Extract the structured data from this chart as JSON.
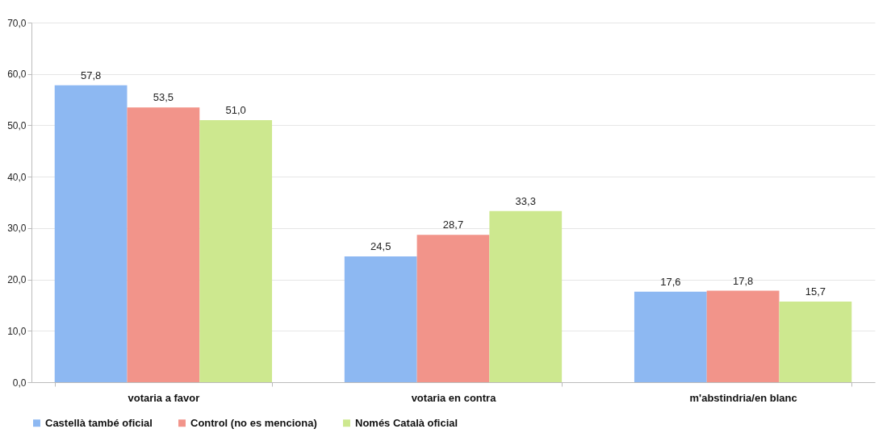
{
  "chart_data": {
    "type": "bar",
    "categories": [
      "votaria a favor",
      "votaria en contra",
      "m'abstindria/en blanc"
    ],
    "series": [
      {
        "name": "Castellà també oficial",
        "color": "#8db8f2",
        "values": [
          57.8,
          24.5,
          17.6
        ],
        "value_labels": [
          "57,8",
          "24,5",
          "17,6"
        ]
      },
      {
        "name": "Control (no es menciona)",
        "color": "#f2948a",
        "values": [
          53.5,
          28.7,
          17.8
        ],
        "value_labels": [
          "53,5",
          "28,7",
          "17,8"
        ]
      },
      {
        "name": "Només Català oficial",
        "color": "#cde88f",
        "values": [
          51.0,
          33.3,
          15.7
        ],
        "value_labels": [
          "51,0",
          "33,3",
          "15,7"
        ]
      }
    ],
    "ylim": [
      0,
      70
    ],
    "yticks": [
      {
        "value": 0,
        "label": "0,0"
      },
      {
        "value": 10,
        "label": "10,0"
      },
      {
        "value": 20,
        "label": "20,0"
      },
      {
        "value": 30,
        "label": "30,0"
      },
      {
        "value": 40,
        "label": "40,0"
      },
      {
        "value": 50,
        "label": "50,0"
      },
      {
        "value": 60,
        "label": "60,0"
      },
      {
        "value": 70,
        "label": "70,0"
      }
    ],
    "grid": "y",
    "legend": "bottom"
  }
}
